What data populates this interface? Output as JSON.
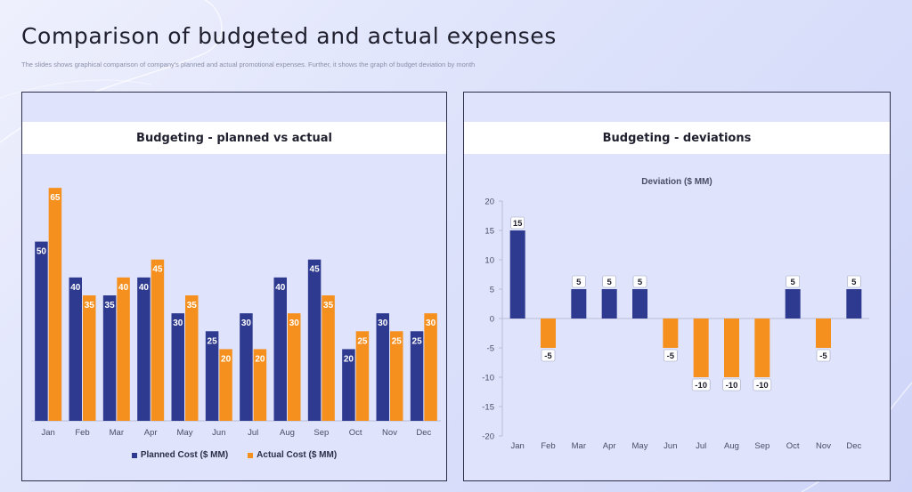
{
  "page": {
    "title": "Comparison of budgeted and actual expenses",
    "subtitle": "The slides shows graphical comparison of company's planned and actual promotional expenses. Further, it shows the graph of budget deviation by month"
  },
  "colors": {
    "planned": "#2e3a8f",
    "actual": "#f5901e",
    "panel_bg": "#dfe3fb",
    "axis": "#b9bdd6"
  },
  "chart_data": [
    {
      "type": "bar",
      "title": "Budgeting - planned vs actual",
      "categories": [
        "Jan",
        "Feb",
        "Mar",
        "Apr",
        "May",
        "Jun",
        "Jul",
        "Aug",
        "Sep",
        "Oct",
        "Nov",
        "Dec"
      ],
      "series": [
        {
          "name": "Planned Cost ($ MM)",
          "values": [
            50,
            40,
            35,
            40,
            30,
            25,
            30,
            40,
            45,
            20,
            30,
            25
          ]
        },
        {
          "name": "Actual Cost ($ MM)",
          "values": [
            65,
            35,
            40,
            45,
            35,
            20,
            20,
            30,
            35,
            25,
            25,
            30
          ]
        }
      ],
      "ylim": [
        0,
        70
      ],
      "legend": "bottom",
      "grid": false
    },
    {
      "type": "bar",
      "title": "Budgeting - deviations",
      "chart_title": "Deviation ($ MM)",
      "categories": [
        "Jan",
        "Feb",
        "Mar",
        "Apr",
        "May",
        "Jun",
        "Jul",
        "Aug",
        "Sep",
        "Oct",
        "Nov",
        "Dec"
      ],
      "values": [
        15,
        -5,
        5,
        5,
        5,
        -5,
        -10,
        -10,
        -10,
        5,
        -5,
        5
      ],
      "ylim": [
        -20,
        20
      ],
      "yticks": [
        20,
        15,
        10,
        5,
        0,
        -5,
        -10,
        -15,
        -20
      ],
      "grid": false
    }
  ]
}
